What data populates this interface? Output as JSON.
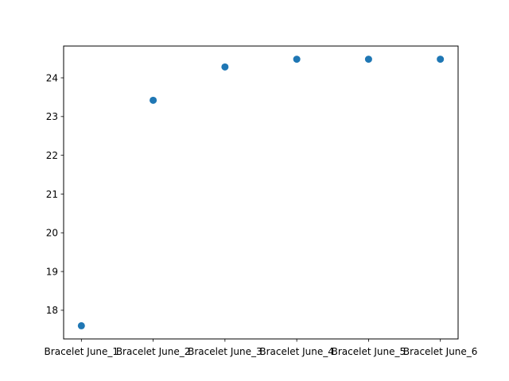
{
  "chart_data": {
    "type": "scatter",
    "title": "",
    "xlabel": "",
    "ylabel": "",
    "categories": [
      "Bracelet June_1",
      "Bracelet June_2",
      "Bracelet June_3",
      "Bracelet June_4",
      "Bracelet June_5",
      "Bracelet June_6"
    ],
    "values": [
      17.6,
      23.42,
      24.28,
      24.48,
      24.48,
      24.48
    ],
    "ylim": [
      17.26,
      24.82
    ],
    "yticks": [
      "18",
      "19",
      "20",
      "21",
      "22",
      "23",
      "24"
    ],
    "grid": false,
    "legend": "none",
    "colors": {
      "marker": "#1f77b4",
      "axes": "#000000",
      "background": "#ffffff"
    }
  }
}
